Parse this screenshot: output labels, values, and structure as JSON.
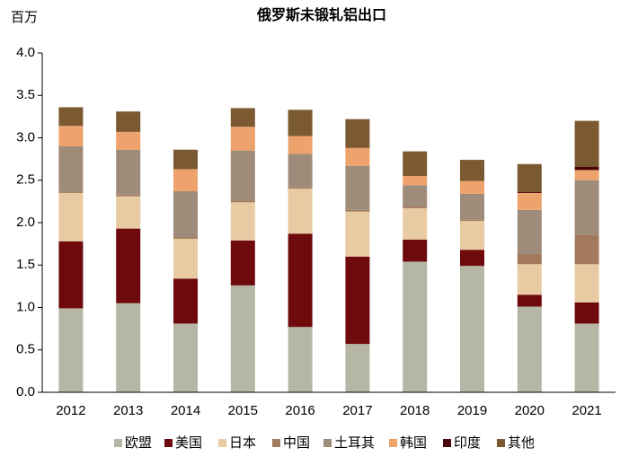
{
  "chart_data": {
    "type": "stacked_bar",
    "title": "俄罗斯未锻轧铝出口",
    "y_label": "百万",
    "categories": [
      "2012",
      "2013",
      "2014",
      "2015",
      "2016",
      "2017",
      "2018",
      "2019",
      "2020",
      "2021"
    ],
    "series": [
      {
        "name": "欧盟",
        "color": "#b6b6a6",
        "values": [
          0.99,
          1.05,
          0.81,
          1.26,
          0.77,
          0.57,
          1.54,
          1.49,
          1.01,
          0.81
        ]
      },
      {
        "name": "美国",
        "color": "#6e0a0c",
        "values": [
          0.79,
          0.88,
          0.53,
          0.53,
          1.1,
          1.03,
          0.26,
          0.19,
          0.14,
          0.25
        ]
      },
      {
        "name": "日本",
        "color": "#e8cba2",
        "values": [
          0.57,
          0.38,
          0.47,
          0.45,
          0.53,
          0.53,
          0.37,
          0.34,
          0.36,
          0.45
        ]
      },
      {
        "name": "中国",
        "color": "#a37a5c",
        "values": [
          0.01,
          0.02,
          0.02,
          0.02,
          0.02,
          0.02,
          0.02,
          0.02,
          0.12,
          0.35
        ]
      },
      {
        "name": "土耳其",
        "color": "#9f8b7a",
        "values": [
          0.54,
          0.53,
          0.54,
          0.59,
          0.39,
          0.52,
          0.25,
          0.3,
          0.52,
          0.64
        ]
      },
      {
        "name": "韩国",
        "color": "#eea26c",
        "values": [
          0.24,
          0.21,
          0.26,
          0.28,
          0.21,
          0.21,
          0.11,
          0.15,
          0.2,
          0.12
        ]
      },
      {
        "name": "印度",
        "color": "#4a0606",
        "values": [
          0,
          0,
          0,
          0,
          0,
          0,
          0,
          0,
          0.01,
          0.04
        ]
      },
      {
        "name": "其他",
        "color": "#7b5a31",
        "values": [
          0.22,
          0.24,
          0.23,
          0.22,
          0.31,
          0.34,
          0.29,
          0.25,
          0.33,
          0.54
        ]
      }
    ],
    "ylim": [
      0,
      4
    ],
    "yticks": [
      {
        "value": 0,
        "label": "0.0"
      },
      {
        "value": 0.5,
        "label": "0.5"
      },
      {
        "value": 1,
        "label": "1.0"
      },
      {
        "value": 1.5,
        "label": "1.5"
      },
      {
        "value": 2,
        "label": "2.0"
      },
      {
        "value": 2.5,
        "label": "2.5"
      },
      {
        "value": 3,
        "label": "3.0"
      },
      {
        "value": 3.5,
        "label": "3.5"
      },
      {
        "value": 4,
        "label": "4.0"
      }
    ],
    "legend": "bottom"
  }
}
